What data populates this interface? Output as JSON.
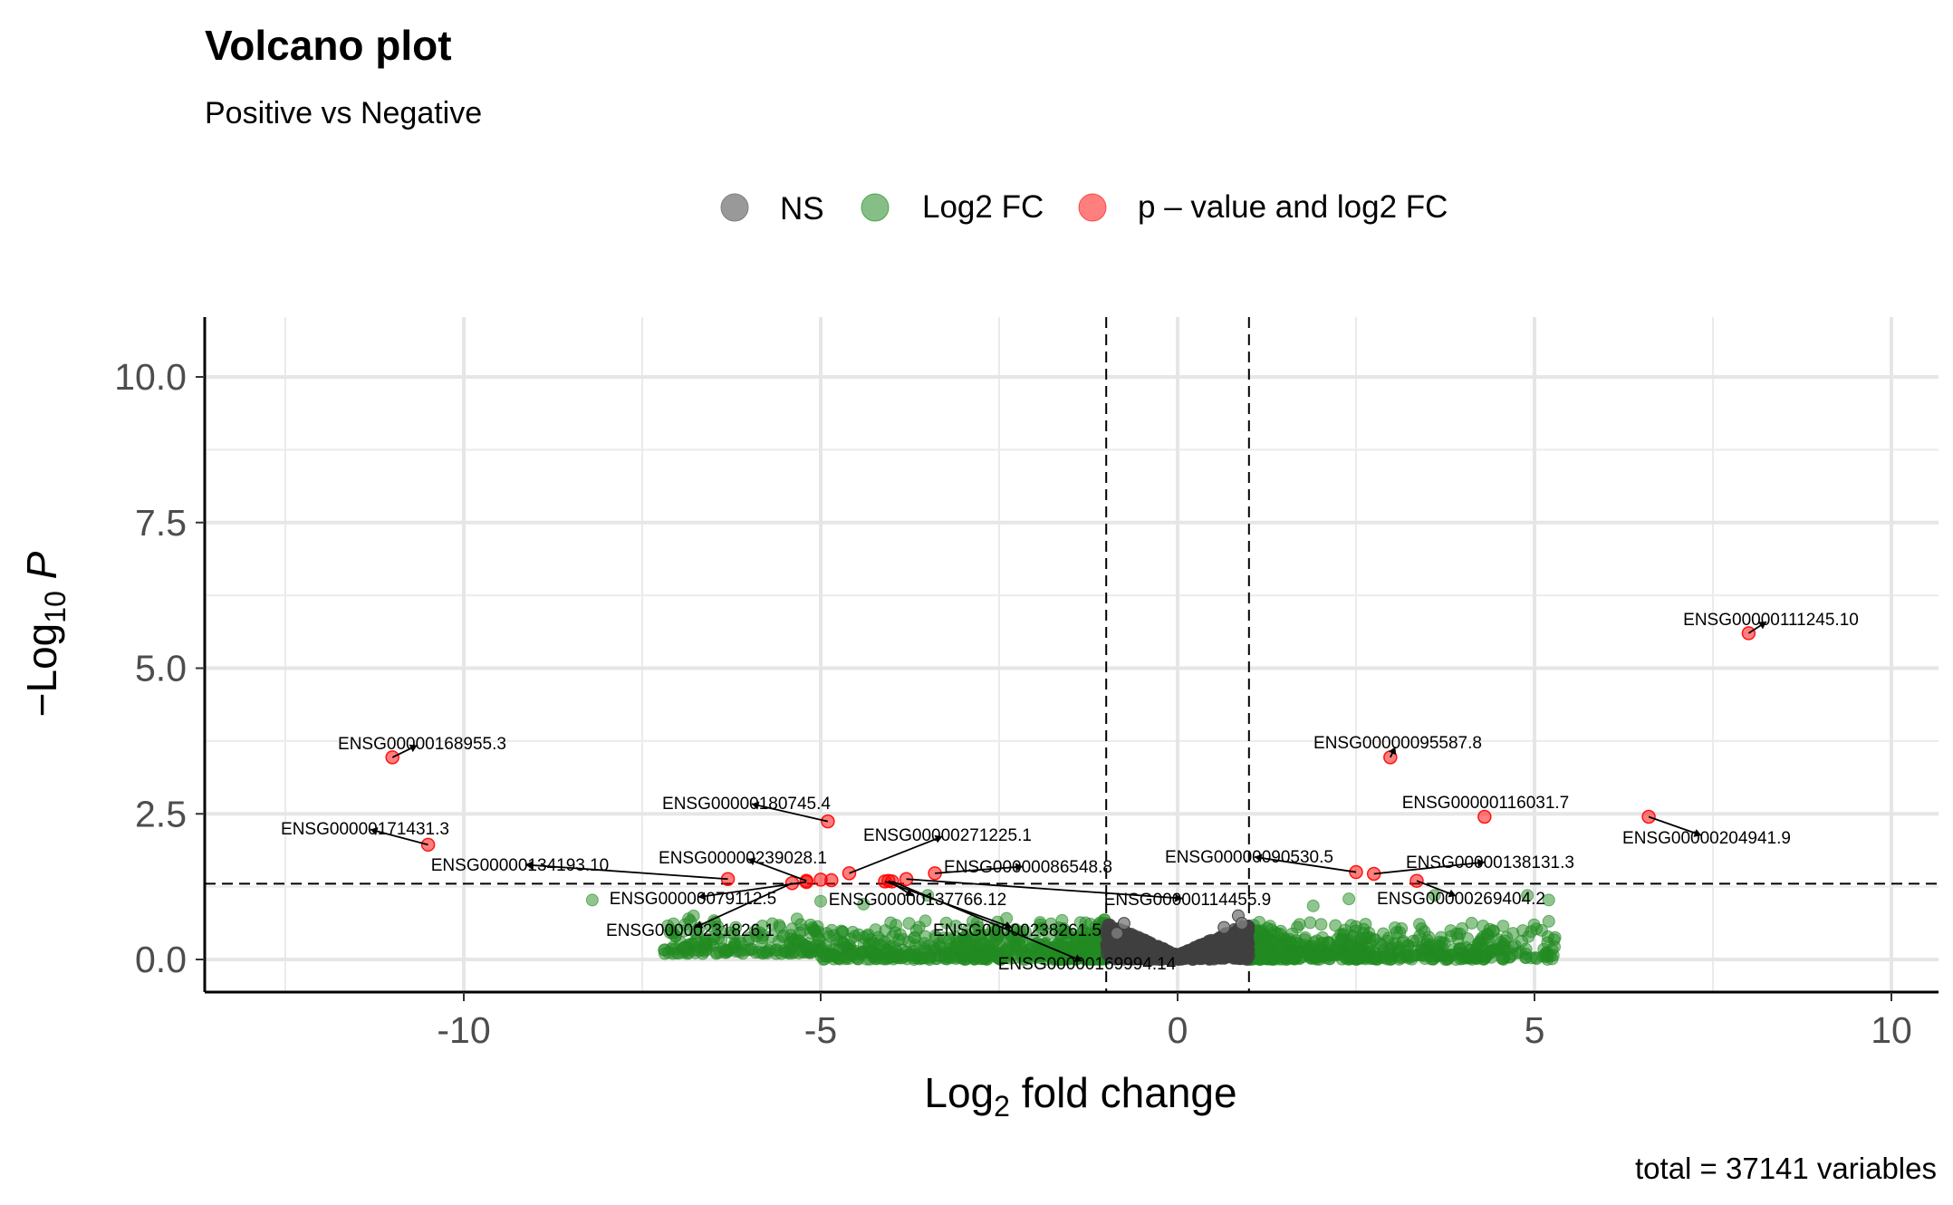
{
  "chart_data": {
    "type": "scatter",
    "title": "Volcano plot",
    "subtitle": "Positive vs Negative",
    "xlabel": "Log2 fold change",
    "ylabel": "−Log10 P",
    "caption": "total = 37141 variables",
    "xlim": [
      -13.5,
      10.6
    ],
    "ylim": [
      -0.5,
      11.1
    ],
    "x_ticks": [
      -10,
      -5,
      0,
      5,
      10
    ],
    "x_tick_labels": [
      "-10",
      "-5",
      "0",
      "5",
      "10"
    ],
    "y_ticks": [
      0,
      2.5,
      5,
      7.5,
      10
    ],
    "y_tick_labels": [
      "0.0",
      "2.5",
      "5.0",
      "7.5",
      "10.0"
    ],
    "grid": true,
    "legend_position": "top",
    "legend": [
      {
        "key": "ns",
        "label": "NS",
        "color": "#808080"
      },
      {
        "key": "fc",
        "label": "Log2 FC",
        "color": "#228b22"
      },
      {
        "key": "both",
        "label": "p – value and log2 FC",
        "color": "#ff0000"
      }
    ],
    "cutoffs": {
      "fc": [
        -1,
        1
      ],
      "pvalue_neglog10": 1.3
    },
    "labeled_points": [
      {
        "id": "ENSG00000111245.10",
        "x": 8.0,
        "y": 5.6
      },
      {
        "id": "ENSG00000168955.3",
        "x": -11.0,
        "y": 3.47
      },
      {
        "id": "ENSG00000171431.3",
        "x": -10.5,
        "y": 1.97
      },
      {
        "id": "ENSG00000095587.8",
        "x": 2.98,
        "y": 3.47
      },
      {
        "id": "ENSG00000180745.4",
        "x": -4.9,
        "y": 2.37
      },
      {
        "id": "ENSG00000116031.7",
        "x": 4.3,
        "y": 2.45
      },
      {
        "id": "ENSG00000204941.9",
        "x": 6.6,
        "y": 2.45
      },
      {
        "id": "ENSG00000271225.1",
        "x": -4.6,
        "y": 1.48
      },
      {
        "id": "ENSG00000134193.10",
        "x": -6.3,
        "y": 1.38
      },
      {
        "id": "ENSG00000239028.1",
        "x": -5.2,
        "y": 1.35
      },
      {
        "id": "ENSG00000086548.8",
        "x": -3.4,
        "y": 1.48
      },
      {
        "id": "ENSG00000090530.5",
        "x": 2.5,
        "y": 1.5
      },
      {
        "id": "ENSG00000138131.3",
        "x": 2.75,
        "y": 1.47
      },
      {
        "id": "ENSG00000079112.5",
        "x": -5.2,
        "y": 1.33
      },
      {
        "id": "ENSG00000137766.12",
        "x": -4.05,
        "y": 1.35
      },
      {
        "id": "ENSG00000114455.9",
        "x": -3.8,
        "y": 1.38
      },
      {
        "id": "ENSG00000269404.2",
        "x": 3.35,
        "y": 1.35
      },
      {
        "id": "ENSG00000231826.1",
        "x": -5.4,
        "y": 1.31
      },
      {
        "id": "ENSG00000238261.5",
        "x": -4.1,
        "y": 1.34
      },
      {
        "id": "ENSG00000169994.14",
        "x": -4.0,
        "y": 1.34
      }
    ],
    "other_significant_points": [
      {
        "x": -5.0,
        "y": 1.37
      },
      {
        "x": -4.85,
        "y": 1.36
      }
    ]
  }
}
